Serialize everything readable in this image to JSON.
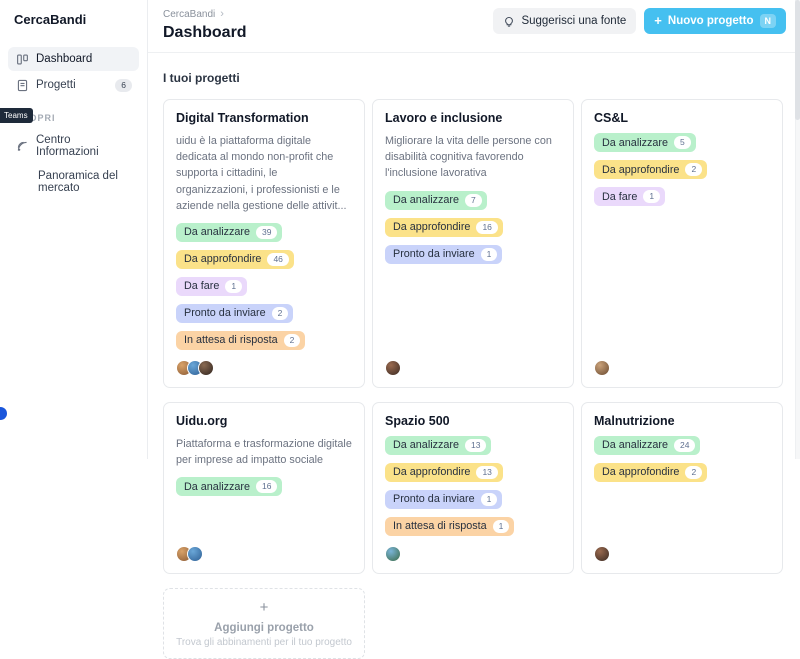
{
  "sidebar": {
    "logo": "CercaBandi",
    "items": [
      {
        "label": "Dashboard",
        "badge": "",
        "active": true,
        "icon": "kanban-icon"
      },
      {
        "label": "Progetti",
        "badge": "6",
        "active": false,
        "icon": "document-icon"
      }
    ],
    "section_label": "SCOPRI",
    "discover_items": [
      {
        "label": "Centro Informazioni",
        "icon": "rss-icon"
      },
      {
        "label": "Panoramica del mercato",
        "icon": ""
      }
    ],
    "teams_badge": "Teams"
  },
  "header": {
    "breadcrumb": "CercaBandi",
    "breadcrumb_separator": "›",
    "title": "Dashboard",
    "suggest_button": "Suggerisci una fonte",
    "suggest_icon": "lightbulb-icon",
    "new_project_plus": "+",
    "new_project_button": "Nuovo progetto",
    "new_project_shortcut": "N"
  },
  "main": {
    "section_title": "I tuoi progetti",
    "add_card": {
      "plus": "+",
      "title": "Aggiungi progetto",
      "subtitle": "Trova gli abbinamenti per il tuo progetto"
    }
  },
  "tag_colors": {
    "da_analizzare": "#b9f0cb",
    "da_approfondire": "#fbe289",
    "da_fare": "#ead9fb",
    "pronto_da_inviare": "#c9d3fa",
    "in_attesa_di_risposta": "#fbd3a5"
  },
  "projects": [
    {
      "title": "Digital Transformation",
      "description": "uidu è la piattaforma digitale dedicata al mondo non-profit che supporta i cittadini, le organizzazioni, i professionisti e le aziende nella gestione delle attivit...",
      "tags": [
        {
          "label": "Da analizzare",
          "count": "39",
          "color": "#b9f0cb"
        },
        {
          "label": "Da approfondire",
          "count": "46",
          "color": "#fbe289"
        },
        {
          "label": "Da fare",
          "count": "1",
          "color": "#ead9fb"
        },
        {
          "label": "Pronto da inviare",
          "count": "2",
          "color": "#c9d3fa"
        },
        {
          "label": "In attesa di risposta",
          "count": "2",
          "color": "#fbd3a5"
        }
      ],
      "avatars": [
        [
          "#d9a268",
          "#8a5a35"
        ],
        [
          "#6aa7d8",
          "#2e5f94"
        ],
        [
          "#8a6a52",
          "#2f241e"
        ]
      ]
    },
    {
      "title": "Lavoro e inclusione",
      "description": "Migliorare la vita delle persone con disabilità cognitiva favorendo l'inclusione lavorativa",
      "tags": [
        {
          "label": "Da analizzare",
          "count": "7",
          "color": "#b9f0cb"
        },
        {
          "label": "Da approfondire",
          "count": "16",
          "color": "#fbe289"
        },
        {
          "label": "Pronto da inviare",
          "count": "1",
          "color": "#c9d3fa"
        }
      ],
      "avatars": [
        [
          "#9a6a4f",
          "#3a2a22"
        ]
      ]
    },
    {
      "title": "CS&L",
      "description": "",
      "tags": [
        {
          "label": "Da analizzare",
          "count": "5",
          "color": "#b9f0cb"
        },
        {
          "label": "Da approfondire",
          "count": "2",
          "color": "#fbe289"
        },
        {
          "label": "Da fare",
          "count": "1",
          "color": "#ead9fb"
        }
      ],
      "avatars": [
        [
          "#caa27a",
          "#6a4a30"
        ]
      ]
    },
    {
      "title": "Uidu.org",
      "description": "Piattaforma e trasformazione digitale per imprese ad impatto sociale",
      "tags": [
        {
          "label": "Da analizzare",
          "count": "16",
          "color": "#b9f0cb"
        }
      ],
      "avatars": [
        [
          "#d9a268",
          "#8a5a35"
        ],
        [
          "#6aa7d8",
          "#2e5f94"
        ]
      ]
    },
    {
      "title": "Spazio 500",
      "description": "",
      "tags": [
        {
          "label": "Da analizzare",
          "count": "13",
          "color": "#b9f0cb"
        },
        {
          "label": "Da approfondire",
          "count": "13",
          "color": "#fbe289"
        },
        {
          "label": "Pronto da inviare",
          "count": "1",
          "color": "#c9d3fa"
        },
        {
          "label": "In attesa di risposta",
          "count": "1",
          "color": "#fbd3a5"
        }
      ],
      "avatars": [
        [
          "#7ab4d8",
          "#3a6a46"
        ]
      ]
    },
    {
      "title": "Malnutrizione",
      "description": "",
      "tags": [
        {
          "label": "Da analizzare",
          "count": "24",
          "color": "#b9f0cb"
        },
        {
          "label": "Da approfondire",
          "count": "2",
          "color": "#fbe289"
        }
      ],
      "avatars": [
        [
          "#9a6a4f",
          "#3a2a22"
        ]
      ]
    }
  ]
}
